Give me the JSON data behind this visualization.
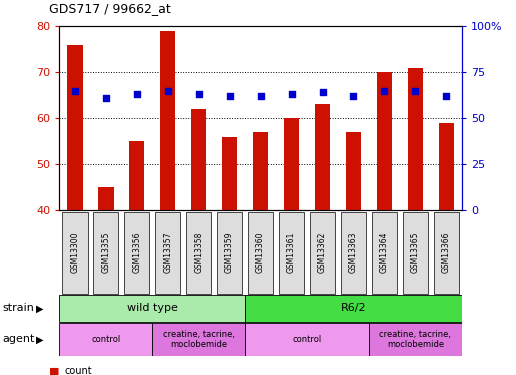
{
  "title": "GDS717 / 99662_at",
  "samples": [
    "GSM13300",
    "GSM13355",
    "GSM13356",
    "GSM13357",
    "GSM13358",
    "GSM13359",
    "GSM13360",
    "GSM13361",
    "GSM13362",
    "GSM13363",
    "GSM13364",
    "GSM13365",
    "GSM13366"
  ],
  "counts": [
    76,
    45,
    55,
    79,
    62,
    56,
    57,
    60,
    63,
    57,
    70,
    71,
    59
  ],
  "percentiles": [
    65,
    61,
    63,
    65,
    63,
    62,
    62,
    63,
    64,
    62,
    65,
    65,
    62
  ],
  "bar_color": "#cc1100",
  "dot_color": "#0000cc",
  "ylim_left": [
    40,
    80
  ],
  "ylim_right": [
    0,
    100
  ],
  "yticks_left": [
    40,
    50,
    60,
    70,
    80
  ],
  "yticks_right": [
    0,
    25,
    50,
    75,
    100
  ],
  "yticklabels_right": [
    "0",
    "25",
    "50",
    "75",
    "100%"
  ],
  "strain_groups": [
    {
      "text": "wild type",
      "start": 0,
      "end": 6,
      "color": "#aaeaaa"
    },
    {
      "text": "R6/2",
      "start": 6,
      "end": 13,
      "color": "#44dd44"
    }
  ],
  "agent_groups": [
    {
      "text": "control",
      "start": 0,
      "end": 3,
      "color": "#ee99ee"
    },
    {
      "text": "creatine, tacrine,\nmoclobemide",
      "start": 3,
      "end": 6,
      "color": "#dd77dd"
    },
    {
      "text": "control",
      "start": 6,
      "end": 10,
      "color": "#ee99ee"
    },
    {
      "text": "creatine, tacrine,\nmoclobemide",
      "start": 10,
      "end": 13,
      "color": "#dd77dd"
    }
  ],
  "gridlines": [
    70,
    60,
    50
  ],
  "background_color": "#ffffff",
  "bar_color_left_spine": "#cc1100",
  "bar_color_right_spine": "#0000cc",
  "tick_label_bg": "#dddddd"
}
